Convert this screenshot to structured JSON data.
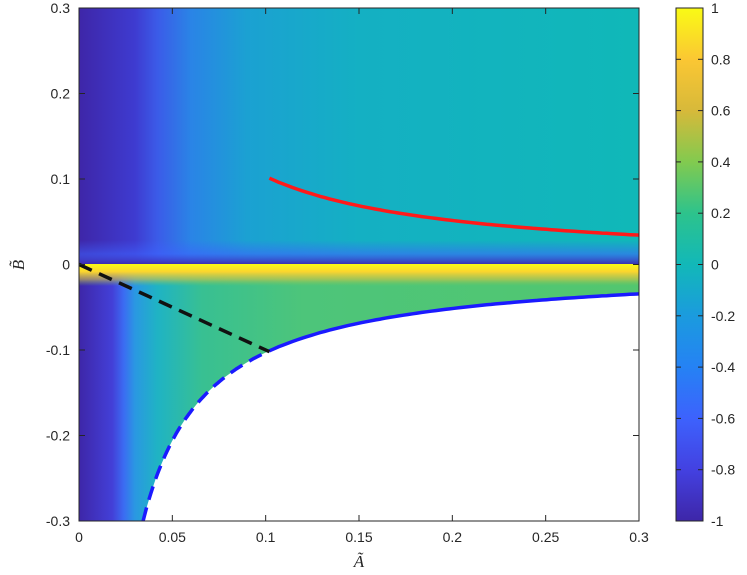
{
  "chart_data": {
    "type": "heatmap",
    "title": "",
    "xlabel": "Ã",
    "ylabel": "B̃",
    "xlim": [
      0,
      0.3
    ],
    "ylim": [
      -0.3,
      0.3
    ],
    "clim": [
      -1,
      1
    ],
    "colormap": "parula",
    "x_ticks": [
      "0",
      "0.05",
      "0.1",
      "0.15",
      "0.2",
      "0.25",
      "0.3"
    ],
    "y_ticks": [
      "-0.3",
      "-0.2",
      "-0.1",
      "0",
      "0.1",
      "0.2",
      "0.3"
    ],
    "colorbar_ticks": [
      "-1",
      "-0.8",
      "-0.6",
      "-0.4",
      "-0.2",
      "0",
      "0.2",
      "0.4",
      "0.6",
      "0.8",
      "1"
    ],
    "grid": false,
    "colorbar": "right",
    "curves": [
      {
        "color": "#ff1a1a",
        "style": "solid",
        "relation": "B = 0.0103 / A",
        "x_range": [
          0.102,
          0.3
        ]
      },
      {
        "color": "#1a1aff",
        "style": "solid",
        "relation": "B = -0.0103 / A",
        "x_range": [
          0.102,
          0.3
        ]
      },
      {
        "color": "#1a1aff",
        "style": "dashed",
        "relation": "B = -0.0103 / A",
        "x_range": [
          0.0345,
          0.102
        ]
      },
      {
        "color": "#111111",
        "style": "dashed",
        "relation": "B = -A",
        "x_range": [
          0,
          0.102
        ]
      }
    ],
    "background_color": "#12b8b8",
    "empty_region": "B < -0.0103 / A (white)"
  }
}
